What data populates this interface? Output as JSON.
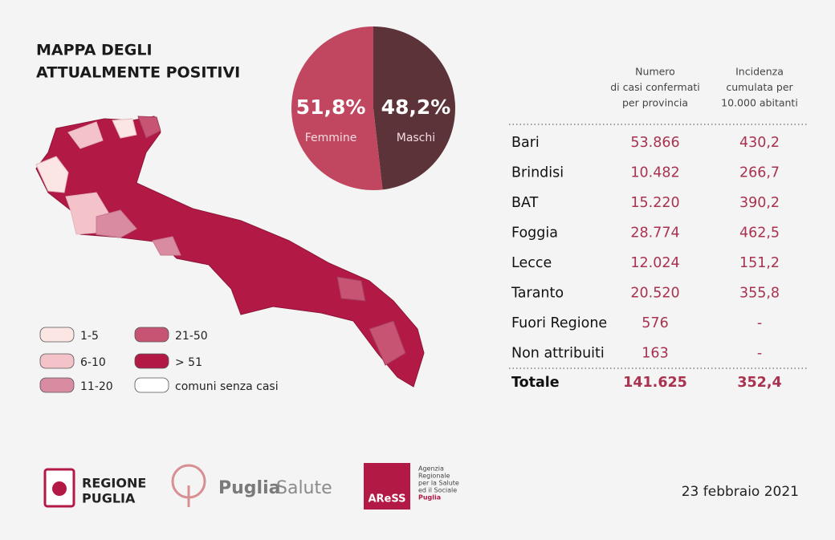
{
  "title_lines": [
    "MAPPA DEGLI",
    "ATTUALMENTE POSITIVI"
  ],
  "chart_data": {
    "type": "pie",
    "categories": [
      "Femmine",
      "Maschi"
    ],
    "values": [
      51.8,
      48.2
    ],
    "value_labels": [
      "51,8%",
      "48,2%"
    ],
    "colors": [
      "#c0475f",
      "#5c3338"
    ]
  },
  "legend": [
    {
      "label": "1-5",
      "color": "#fbe6e3"
    },
    {
      "label": "6-10",
      "color": "#f4c3ca"
    },
    {
      "label": "11-20",
      "color": "#d98ba2"
    },
    {
      "label": "21-50",
      "color": "#c65472"
    },
    {
      "label": "> 51",
      "color": "#b21a45"
    },
    {
      "label": "comuni senza casi",
      "color": "#ffffff"
    }
  ],
  "table": {
    "headers": [
      [
        "Numero",
        "di casi confermati",
        "per provincia"
      ],
      [
        "Incidenza",
        "cumulata per",
        "10.000 abitanti"
      ]
    ],
    "rows": [
      [
        "Bari",
        "53.866",
        "430,2"
      ],
      [
        "Brindisi",
        "10.482",
        "266,7"
      ],
      [
        "BAT",
        "15.220",
        "390,2"
      ],
      [
        "Foggia",
        "28.774",
        "462,5"
      ],
      [
        "Lecce",
        "12.024",
        "151,2"
      ],
      [
        "Taranto",
        "20.520",
        "355,8"
      ],
      [
        "Fuori Regione",
        "576",
        "-"
      ],
      [
        "Non attribuiti",
        "163",
        "-"
      ]
    ],
    "total": [
      "Totale",
      "141.625",
      "352,4"
    ]
  },
  "logos": {
    "regione": [
      "REGIONE",
      "PUGLIA"
    ],
    "puglia_salute": [
      "Puglia",
      "Salute"
    ],
    "aress": "AReSS",
    "aress_text": [
      "Agenzia",
      "Regionale",
      "per la Salute",
      "ed il Sociale",
      "Puglia"
    ]
  },
  "date": "23 febbraio 2021"
}
